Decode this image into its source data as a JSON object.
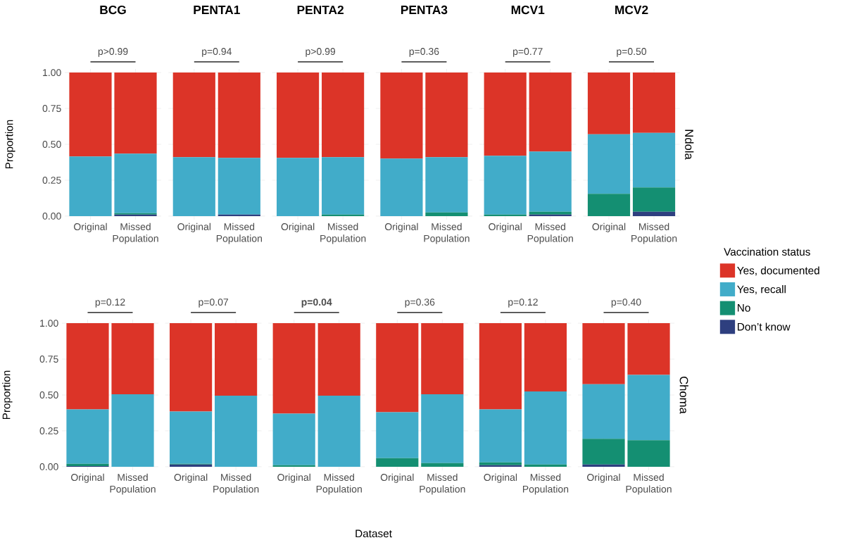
{
  "chart_data": [
    {
      "type": "bar",
      "stacked": true,
      "title": "BCG",
      "ylabel": "Proportion",
      "categories": [
        "Original",
        "Missed Population"
      ],
      "ylim": [
        0,
        1
      ],
      "yticks": [
        {
          "value": 0,
          "label": "0.00"
        },
        {
          "value": 0.25,
          "label": "0.25"
        },
        {
          "value": 0.5,
          "label": "0.50"
        },
        {
          "value": 0.75,
          "label": "0.75"
        },
        {
          "value": 1,
          "label": "1.00"
        }
      ],
      "grid": true,
      "annotations": [
        "p>0.99"
      ],
      "series": [
        {
          "color": "#2e3f7f",
          "values": [
            0,
            0.01
          ]
        },
        {
          "color": "#148f72",
          "values": [
            0,
            0.01
          ]
        },
        {
          "color": "#41acc9",
          "values": [
            0.415,
            0.415
          ]
        },
        {
          "color": "#dc3428",
          "values": [
            0.585,
            0.565
          ]
        }
      ]
    },
    {
      "type": "bar",
      "stacked": true,
      "title": "PENTA1",
      "tick_labels": "x",
      "categories": [
        "Original",
        "Missed Population"
      ],
      "ylim": [
        0,
        1
      ],
      "yticks": [
        0,
        0.25,
        0.5,
        0.75,
        1
      ],
      "grid": true,
      "annotations": [
        "p=0.94"
      ],
      "series": [
        {
          "color": "#2e3f7f",
          "values": [
            0,
            0.01
          ]
        },
        {
          "color": "#148f72",
          "values": [
            0,
            0
          ]
        },
        {
          "color": "#41acc9",
          "values": [
            0.41,
            0.395
          ]
        },
        {
          "color": "#dc3428",
          "values": [
            0.59,
            0.595
          ]
        }
      ]
    },
    {
      "type": "bar",
      "stacked": true,
      "title": "PENTA2",
      "tick_labels": "x",
      "categories": [
        "Original",
        "Missed Population"
      ],
      "ylim": [
        0,
        1
      ],
      "yticks": [
        0,
        0.25,
        0.5,
        0.75,
        1
      ],
      "grid": true,
      "annotations": [
        "p>0.99"
      ],
      "series": [
        {
          "color": "#2e3f7f",
          "values": [
            0,
            0
          ]
        },
        {
          "color": "#148f72",
          "values": [
            0,
            0.01
          ]
        },
        {
          "color": "#41acc9",
          "values": [
            0.405,
            0.4
          ]
        },
        {
          "color": "#dc3428",
          "values": [
            0.595,
            0.59
          ]
        }
      ]
    },
    {
      "type": "bar",
      "stacked": true,
      "title": "PENTA3",
      "tick_labels": "x",
      "categories": [
        "Original",
        "Missed Population"
      ],
      "ylim": [
        0,
        1
      ],
      "yticks": [
        0,
        0.25,
        0.5,
        0.75,
        1
      ],
      "grid": true,
      "annotations": [
        "p=0.36"
      ],
      "series": [
        {
          "color": "#2e3f7f",
          "values": [
            0,
            0
          ]
        },
        {
          "color": "#148f72",
          "values": [
            0,
            0.025
          ]
        },
        {
          "color": "#41acc9",
          "values": [
            0.4,
            0.385
          ]
        },
        {
          "color": "#dc3428",
          "values": [
            0.6,
            0.59
          ]
        }
      ]
    },
    {
      "type": "bar",
      "stacked": true,
      "title": "MCV1",
      "tick_labels": "x",
      "categories": [
        "Original",
        "Missed Population"
      ],
      "ylim": [
        0,
        1
      ],
      "yticks": [
        0,
        0.25,
        0.5,
        0.75,
        1
      ],
      "grid": true,
      "annotations": [
        "p=0.77"
      ],
      "series": [
        {
          "color": "#2e3f7f",
          "values": [
            0,
            0.01
          ]
        },
        {
          "color": "#148f72",
          "values": [
            0.01,
            0.02
          ]
        },
        {
          "color": "#41acc9",
          "values": [
            0.41,
            0.42
          ]
        },
        {
          "color": "#dc3428",
          "values": [
            0.58,
            0.55
          ]
        }
      ]
    },
    {
      "type": "bar",
      "stacked": true,
      "title": "MCV2",
      "tick_labels": "x",
      "categories": [
        "Original",
        "Missed Population"
      ],
      "ylim": [
        0,
        1
      ],
      "yticks": [
        0,
        0.25,
        0.5,
        0.75,
        1
      ],
      "grid": true,
      "annotations": [
        "p=0.50",
        "Ndola"
      ],
      "legend": "right",
      "legend_title": "Vaccination status",
      "series": [
        {
          "name": "Don’t know",
          "color": "#2e3f7f",
          "values": [
            0,
            0.03
          ]
        },
        {
          "name": "No",
          "color": "#148f72",
          "values": [
            0.155,
            0.17
          ]
        },
        {
          "name": "Yes, recall",
          "color": "#41acc9",
          "values": [
            0.415,
            0.38
          ]
        },
        {
          "name": "Yes, documented",
          "color": "#dc3428",
          "values": [
            0.43,
            0.42
          ]
        }
      ]
    },
    {
      "type": "bar",
      "stacked": true,
      "ylabel": "Proportion",
      "categories": [
        "Original",
        "Missed Population"
      ],
      "ylim": [
        0,
        1
      ],
      "yticks": [
        {
          "value": 0,
          "label": "0.00"
        },
        {
          "value": 0.25,
          "label": "0.25"
        },
        {
          "value": 0.5,
          "label": "0.50"
        },
        {
          "value": 0.75,
          "label": "0.75"
        },
        {
          "value": 1,
          "label": "1.00"
        }
      ],
      "grid": true,
      "annotations": [
        "p=0.12"
      ],
      "series": [
        {
          "color": "#2e3f7f",
          "values": [
            0.005,
            0
          ]
        },
        {
          "color": "#148f72",
          "values": [
            0.015,
            0
          ]
        },
        {
          "color": "#41acc9",
          "values": [
            0.38,
            0.505
          ]
        },
        {
          "color": "#dc3428",
          "values": [
            0.6,
            0.495
          ]
        }
      ]
    },
    {
      "type": "bar",
      "stacked": true,
      "tick_labels": "x",
      "categories": [
        "Original",
        "Missed Population"
      ],
      "ylim": [
        0,
        1
      ],
      "yticks": [
        0,
        0.25,
        0.5,
        0.75,
        1
      ],
      "grid": true,
      "annotations": [
        "p=0.07"
      ],
      "series": [
        {
          "color": "#2e3f7f",
          "values": [
            0.015,
            0
          ]
        },
        {
          "color": "#148f72",
          "values": [
            0.005,
            0
          ]
        },
        {
          "color": "#41acc9",
          "values": [
            0.365,
            0.495
          ]
        },
        {
          "color": "#dc3428",
          "values": [
            0.615,
            0.505
          ]
        }
      ]
    },
    {
      "type": "bar",
      "stacked": true,
      "tick_labels": "x",
      "xlabel": "Dataset",
      "categories": [
        "Original",
        "Missed Population"
      ],
      "ylim": [
        0,
        1
      ],
      "yticks": [
        0,
        0.25,
        0.5,
        0.75,
        1
      ],
      "grid": true,
      "annotations": [
        "**p=0.04**"
      ],
      "series": [
        {
          "color": "#2e3f7f",
          "values": [
            0,
            0
          ]
        },
        {
          "color": "#148f72",
          "values": [
            0.01,
            0
          ]
        },
        {
          "color": "#41acc9",
          "values": [
            0.36,
            0.495
          ]
        },
        {
          "color": "#dc3428",
          "values": [
            0.63,
            0.505
          ]
        }
      ]
    },
    {
      "type": "bar",
      "stacked": true,
      "tick_labels": "x",
      "categories": [
        "Original",
        "Missed Population"
      ],
      "ylim": [
        0,
        1
      ],
      "yticks": [
        0,
        0.25,
        0.5,
        0.75,
        1
      ],
      "grid": true,
      "annotations": [
        "p=0.36"
      ],
      "series": [
        {
          "color": "#2e3f7f",
          "values": [
            0,
            0
          ]
        },
        {
          "color": "#148f72",
          "values": [
            0.06,
            0.025
          ]
        },
        {
          "color": "#41acc9",
          "values": [
            0.32,
            0.48
          ]
        },
        {
          "color": "#dc3428",
          "values": [
            0.62,
            0.495
          ]
        }
      ]
    },
    {
      "type": "bar",
      "stacked": true,
      "tick_labels": "x",
      "categories": [
        "Original",
        "Missed Population"
      ],
      "ylim": [
        0,
        1
      ],
      "yticks": [
        0,
        0.25,
        0.5,
        0.75,
        1
      ],
      "grid": true,
      "annotations": [
        "p=0.12"
      ],
      "series": [
        {
          "color": "#2e3f7f",
          "values": [
            0.01,
            0
          ]
        },
        {
          "color": "#148f72",
          "values": [
            0.02,
            0.015
          ]
        },
        {
          "color": "#41acc9",
          "values": [
            0.37,
            0.51
          ]
        },
        {
          "color": "#dc3428",
          "values": [
            0.6,
            0.475
          ]
        }
      ]
    },
    {
      "type": "bar",
      "stacked": true,
      "tick_labels": "x",
      "categories": [
        "Original",
        "Missed Population"
      ],
      "ylim": [
        0,
        1
      ],
      "yticks": [
        0,
        0.25,
        0.5,
        0.75,
        1
      ],
      "grid": true,
      "annotations": [
        "p=0.40",
        "Choma"
      ],
      "series": [
        {
          "color": "#2e3f7f",
          "values": [
            0.015,
            0
          ]
        },
        {
          "color": "#148f72",
          "values": [
            0.18,
            0.185
          ]
        },
        {
          "color": "#41acc9",
          "values": [
            0.38,
            0.455
          ]
        },
        {
          "color": "#dc3428",
          "values": [
            0.425,
            0.36
          ]
        }
      ]
    }
  ]
}
